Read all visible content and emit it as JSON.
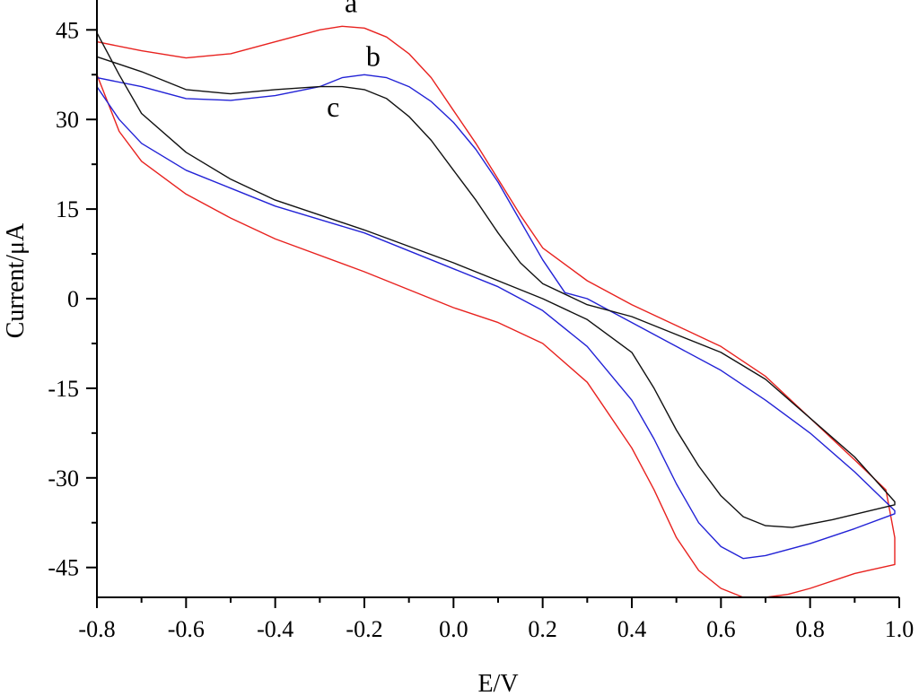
{
  "chart_data": {
    "type": "line",
    "xlabel": "E/V",
    "ylabel": "Current/μA",
    "xlim": [
      -0.8,
      1.0
    ],
    "ylim": [
      -50,
      50
    ],
    "xticks": [
      {
        "value": -0.8,
        "label": "-0.8"
      },
      {
        "value": -0.6,
        "label": "-0.6"
      },
      {
        "value": -0.4,
        "label": "-0.4"
      },
      {
        "value": -0.2,
        "label": "-0.2"
      },
      {
        "value": 0.0,
        "label": "0.0"
      },
      {
        "value": 0.2,
        "label": "0.2"
      },
      {
        "value": 0.4,
        "label": "0.4"
      },
      {
        "value": 0.6,
        "label": "0.6"
      },
      {
        "value": 0.8,
        "label": "0.8"
      },
      {
        "value": 1.0,
        "label": "1.0"
      }
    ],
    "yticks": [
      {
        "value": 45,
        "label": "45"
      },
      {
        "value": 30,
        "label": "30"
      },
      {
        "value": 15,
        "label": "15"
      },
      {
        "value": 0,
        "label": "0"
      },
      {
        "value": -15,
        "label": "-15"
      },
      {
        "value": -30,
        "label": "-30"
      },
      {
        "value": -45,
        "label": "-45"
      }
    ],
    "grid": false,
    "series": [
      {
        "name": "a",
        "color": "#e8221f",
        "label_position": [
          -0.23,
          48.0
        ],
        "points": [
          [
            -0.8,
            37.5
          ],
          [
            -0.75,
            28.0
          ],
          [
            -0.7,
            23.0
          ],
          [
            -0.6,
            17.5
          ],
          [
            -0.5,
            13.5
          ],
          [
            -0.4,
            10.0
          ],
          [
            -0.2,
            4.5
          ],
          [
            0.0,
            -1.5
          ],
          [
            0.1,
            -4.0
          ],
          [
            0.2,
            -7.5
          ],
          [
            0.3,
            -14.0
          ],
          [
            0.4,
            -25.0
          ],
          [
            0.45,
            -32.0
          ],
          [
            0.5,
            -40.0
          ],
          [
            0.55,
            -45.5
          ],
          [
            0.6,
            -48.5
          ],
          [
            0.65,
            -50.0
          ],
          [
            0.7,
            -50.0
          ],
          [
            0.75,
            -49.5
          ],
          [
            0.8,
            -48.5
          ],
          [
            0.9,
            -46.0
          ],
          [
            0.99,
            -44.5
          ],
          [
            0.99,
            -40.0
          ],
          [
            0.97,
            -32.0
          ],
          [
            0.9,
            -27.0
          ],
          [
            0.8,
            -20.0
          ],
          [
            0.7,
            -13.0
          ],
          [
            0.6,
            -8.0
          ],
          [
            0.5,
            -4.5
          ],
          [
            0.4,
            -1.0
          ],
          [
            0.3,
            3.0
          ],
          [
            0.2,
            8.5
          ],
          [
            0.15,
            14.0
          ],
          [
            0.1,
            20.0
          ],
          [
            0.05,
            26.0
          ],
          [
            0.0,
            31.5
          ],
          [
            -0.05,
            37.0
          ],
          [
            -0.1,
            41.0
          ],
          [
            -0.15,
            43.8
          ],
          [
            -0.2,
            45.3
          ],
          [
            -0.25,
            45.6
          ],
          [
            -0.3,
            45.0
          ],
          [
            -0.4,
            43.0
          ],
          [
            -0.5,
            41.0
          ],
          [
            -0.6,
            40.3
          ],
          [
            -0.7,
            41.5
          ],
          [
            -0.8,
            43.0
          ]
        ]
      },
      {
        "name": "b",
        "color": "#2222d6",
        "label_position": [
          -0.18,
          39.0
        ],
        "points": [
          [
            -0.8,
            35.5
          ],
          [
            -0.75,
            30.0
          ],
          [
            -0.7,
            26.0
          ],
          [
            -0.6,
            21.5
          ],
          [
            -0.5,
            18.5
          ],
          [
            -0.4,
            15.5
          ],
          [
            -0.2,
            11.0
          ],
          [
            0.0,
            5.0
          ],
          [
            0.1,
            2.0
          ],
          [
            0.2,
            -2.0
          ],
          [
            0.3,
            -8.0
          ],
          [
            0.4,
            -17.0
          ],
          [
            0.45,
            -23.5
          ],
          [
            0.5,
            -31.0
          ],
          [
            0.55,
            -37.5
          ],
          [
            0.6,
            -41.5
          ],
          [
            0.65,
            -43.5
          ],
          [
            0.7,
            -43.0
          ],
          [
            0.8,
            -41.0
          ],
          [
            0.9,
            -38.5
          ],
          [
            0.99,
            -36.0
          ],
          [
            0.99,
            -35.5
          ],
          [
            0.9,
            -29.0
          ],
          [
            0.8,
            -22.5
          ],
          [
            0.7,
            -17.0
          ],
          [
            0.6,
            -12.0
          ],
          [
            0.5,
            -8.0
          ],
          [
            0.4,
            -4.0
          ],
          [
            0.3,
            0.0
          ],
          [
            0.25,
            1.0
          ],
          [
            0.2,
            6.5
          ],
          [
            0.15,
            13.0
          ],
          [
            0.1,
            19.5
          ],
          [
            0.05,
            25.0
          ],
          [
            0.0,
            29.5
          ],
          [
            -0.05,
            33.0
          ],
          [
            -0.1,
            35.5
          ],
          [
            -0.15,
            37.0
          ],
          [
            -0.2,
            37.5
          ],
          [
            -0.25,
            37.0
          ],
          [
            -0.3,
            35.5
          ],
          [
            -0.4,
            34.0
          ],
          [
            -0.5,
            33.2
          ],
          [
            -0.6,
            33.5
          ],
          [
            -0.7,
            35.5
          ],
          [
            -0.8,
            37.0
          ]
        ]
      },
      {
        "name": "c",
        "color": "#111111",
        "label_position": [
          -0.27,
          30.5
        ],
        "points": [
          [
            -0.8,
            44.5
          ],
          [
            -0.75,
            37.5
          ],
          [
            -0.7,
            31.0
          ],
          [
            -0.6,
            24.5
          ],
          [
            -0.5,
            20.0
          ],
          [
            -0.4,
            16.5
          ],
          [
            -0.2,
            11.5
          ],
          [
            0.0,
            6.0
          ],
          [
            0.1,
            3.0
          ],
          [
            0.2,
            0.0
          ],
          [
            0.3,
            -3.5
          ],
          [
            0.4,
            -9.0
          ],
          [
            0.45,
            -15.0
          ],
          [
            0.5,
            -22.0
          ],
          [
            0.55,
            -28.0
          ],
          [
            0.6,
            -33.0
          ],
          [
            0.65,
            -36.5
          ],
          [
            0.7,
            -38.0
          ],
          [
            0.76,
            -38.3
          ],
          [
            0.85,
            -37.0
          ],
          [
            0.99,
            -34.5
          ],
          [
            0.99,
            -34.0
          ],
          [
            0.9,
            -26.5
          ],
          [
            0.8,
            -20.0
          ],
          [
            0.7,
            -13.5
          ],
          [
            0.6,
            -9.0
          ],
          [
            0.5,
            -6.0
          ],
          [
            0.4,
            -3.0
          ],
          [
            0.3,
            -1.0
          ],
          [
            0.2,
            2.5
          ],
          [
            0.15,
            6.0
          ],
          [
            0.1,
            11.0
          ],
          [
            0.05,
            16.5
          ],
          [
            0.0,
            21.5
          ],
          [
            -0.05,
            26.5
          ],
          [
            -0.1,
            30.5
          ],
          [
            -0.15,
            33.5
          ],
          [
            -0.2,
            35.0
          ],
          [
            -0.25,
            35.5
          ],
          [
            -0.3,
            35.5
          ],
          [
            -0.4,
            35.0
          ],
          [
            -0.5,
            34.3
          ],
          [
            -0.6,
            35.0
          ],
          [
            -0.7,
            38.0
          ],
          [
            -0.8,
            40.5
          ]
        ]
      }
    ]
  }
}
